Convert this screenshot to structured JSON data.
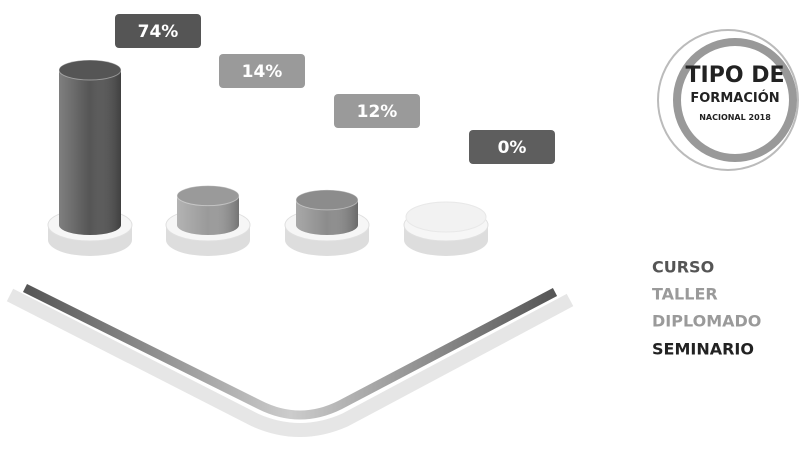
{
  "chart_data": {
    "type": "bar",
    "title": [
      "TIPO DE",
      "FORMACIÓN"
    ],
    "subtitle": "NACIONAL 2018",
    "categories": [
      "CURSO",
      "TALLER",
      "DIPLOMADO",
      "SEMINARIO"
    ],
    "values": [
      74,
      14,
      12,
      0
    ],
    "value_labels": [
      "74%",
      "14%",
      "12%",
      "0%"
    ],
    "colors": [
      "#555555",
      "#9a9a9a",
      "#8c8c8c",
      "#f2f2f2"
    ],
    "label_colors": [
      "#555555",
      "#9a9a9a",
      "#9a9a9a",
      "#5e5e5e"
    ]
  }
}
